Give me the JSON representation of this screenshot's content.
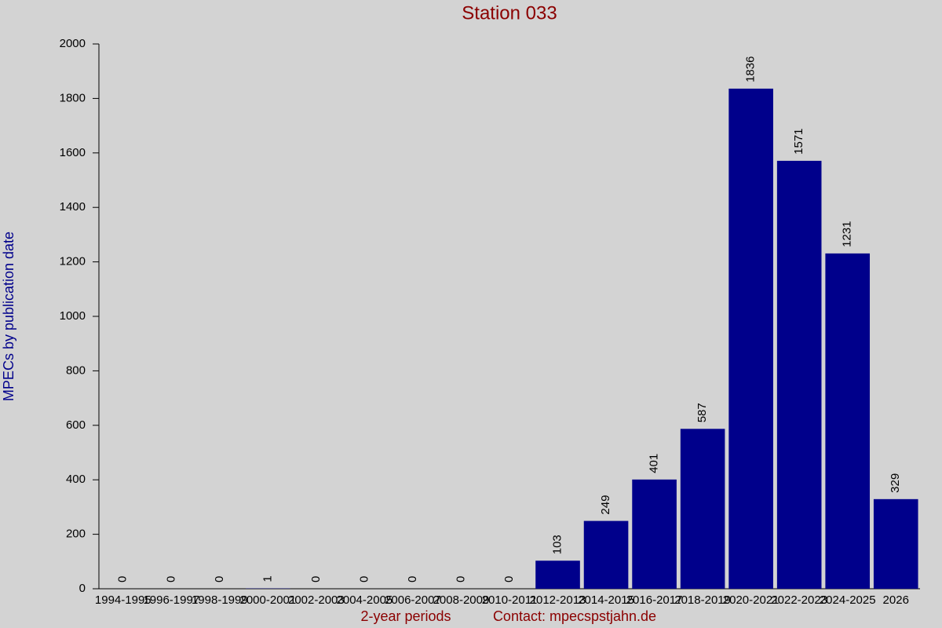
{
  "chart_data": {
    "type": "bar",
    "title": "Station 033",
    "y_label": "MPECs by publication date",
    "x_label": "2-year periods",
    "contact": "Contact: mpecspstjahn.de",
    "categories": [
      "1994-1995",
      "1996-1997",
      "1998-1999",
      "2000-2001",
      "2002-2003",
      "2004-2005",
      "2006-2007",
      "2008-2009",
      "2010-2011",
      "2012-2013",
      "2014-2015",
      "2016-2017",
      "2018-2019",
      "2020-2021",
      "2022-2023",
      "2024-2025",
      "2026"
    ],
    "values": [
      0,
      0,
      0,
      1,
      0,
      0,
      0,
      0,
      0,
      103,
      249,
      401,
      587,
      1836,
      1571,
      1231,
      329
    ],
    "color": "#00008b",
    "ylim": [
      0,
      2000
    ],
    "yticks": [
      0,
      200,
      400,
      600,
      800,
      1000,
      1200,
      1400,
      1600,
      1800,
      2000
    ],
    "grid": false
  }
}
